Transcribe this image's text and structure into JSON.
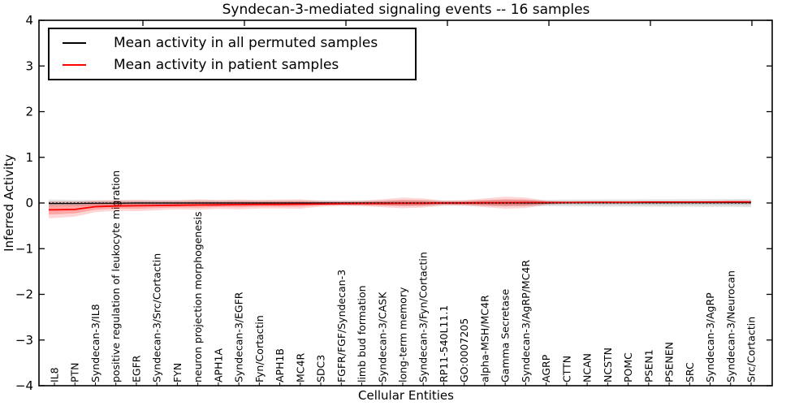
{
  "title": "Syndecan-3-mediated signaling events -- 16 samples",
  "axes": {
    "x_label": "Cellular Entities",
    "y_label": "Inferred Activity",
    "y_ticks": [
      4,
      3,
      2,
      1,
      0,
      -1,
      -2,
      -3,
      -4
    ],
    "y_min": -4,
    "y_max": 4
  },
  "legend": {
    "items": [
      {
        "label": "Mean activity in all permuted samples",
        "color": "#000000"
      },
      {
        "label": "Mean activity in patient samples",
        "color": "#ff0000"
      }
    ]
  },
  "colors": {
    "background": "#ffffff",
    "frame": "#000000",
    "permuted_line": "#000000",
    "patient_line": "#ff0000",
    "permuted_band": "#000000",
    "patient_band": "#ff0000",
    "zero_line": "#000000"
  },
  "chart_data": {
    "type": "line",
    "title": "Syndecan-3-mediated signaling events -- 16 samples",
    "xlabel": "Cellular Entities",
    "ylabel": "Inferred Activity",
    "ylim": [
      -4,
      4
    ],
    "grid": false,
    "legend_position": "upper left",
    "zero_line": {
      "value": 0,
      "style": "dotted",
      "color": "#000000"
    },
    "categories": [
      "IL8",
      "PTN",
      "Syndecan-3/IL8",
      "positive regulation of leukocyte migration",
      "EGFR",
      "Syndecan-3/Src/Cortactin",
      "FYN",
      "neuron projection morphogenesis",
      "APH1A",
      "Syndecan-3/EGFR",
      "Fyn/Cortactin",
      "APH1B",
      "MC4R",
      "SDC3",
      "FGFR/FGF/Syndecan-3",
      "limb bud formation",
      "Syndecan-3/CASK",
      "long-term memory",
      "Syndecan-3/Fyn/Cortactin",
      "RP11-540L11.1",
      "GO:0007205",
      "alpha-MSH/MC4R",
      "Gamma Secretase",
      "Syndecan-3/AgRP/MC4R",
      "AGRP",
      "CTTN",
      "NCAN",
      "NCSTN",
      "POMC",
      "PSEN1",
      "PSENEN",
      "SRC",
      "Syndecan-3/AgRP",
      "Syndecan-3/Neurocan",
      "Src/Cortactin"
    ],
    "series": [
      {
        "name": "Mean activity in all permuted samples",
        "color": "#000000",
        "values": [
          -0.01,
          -0.01,
          -0.005,
          -0.005,
          0,
          0,
          0,
          0,
          0,
          0,
          0,
          0,
          0,
          0,
          0,
          0,
          0,
          0,
          0,
          0,
          0,
          0,
          0,
          0,
          0,
          0.005,
          0.005,
          0.005,
          0.005,
          0.005,
          0.005,
          0.005,
          0.005,
          0.005,
          0.005
        ],
        "band_upper": [
          0.075,
          0.07,
          0.065,
          0.06,
          0.06,
          0.06,
          0.06,
          0.06,
          0.058,
          0.058,
          0.057,
          0.057,
          0.056,
          0.055,
          0.055,
          0.056,
          0.06,
          0.065,
          0.065,
          0.06,
          0.06,
          0.068,
          0.075,
          0.075,
          0.07,
          0.075,
          0.078,
          0.08,
          0.08,
          0.082,
          0.083,
          0.085,
          0.087,
          0.088,
          0.09
        ],
        "band_lower": [
          -0.075,
          -0.07,
          -0.065,
          -0.06,
          -0.06,
          -0.06,
          -0.06,
          -0.06,
          -0.058,
          -0.058,
          -0.057,
          -0.057,
          -0.056,
          -0.055,
          -0.055,
          -0.056,
          -0.06,
          -0.065,
          -0.065,
          -0.06,
          -0.06,
          -0.068,
          -0.075,
          -0.075,
          -0.07,
          -0.075,
          -0.078,
          -0.08,
          -0.08,
          -0.082,
          -0.083,
          -0.085,
          -0.087,
          -0.088,
          -0.09
        ]
      },
      {
        "name": "Mean activity in patient samples",
        "color": "#ff0000",
        "values": [
          -0.15,
          -0.14,
          -0.08,
          -0.065,
          -0.06,
          -0.055,
          -0.05,
          -0.045,
          -0.04,
          -0.035,
          -0.03,
          -0.03,
          -0.025,
          -0.02,
          -0.015,
          -0.01,
          -0.01,
          -0.005,
          -0.005,
          0,
          0,
          0.005,
          0.005,
          0.01,
          0.01,
          0.01,
          0.015,
          0.015,
          0.015,
          0.02,
          0.02,
          0.02,
          0.02,
          0.025,
          0.025
        ],
        "band_upper": [
          0.03,
          0.03,
          0.05,
          0.06,
          0.07,
          0.06,
          0.06,
          0.08,
          0.065,
          0.075,
          0.065,
          0.075,
          0.08,
          0.05,
          0.04,
          0.05,
          0.08,
          0.12,
          0.1,
          0.05,
          0.06,
          0.1,
          0.14,
          0.12,
          0.05,
          0.03,
          0.025,
          0.03,
          0.03,
          0.03,
          0.03,
          0.035,
          0.04,
          0.04,
          0.04
        ],
        "band_lower": [
          -0.33,
          -0.3,
          -0.2,
          -0.17,
          -0.18,
          -0.16,
          -0.14,
          -0.15,
          -0.13,
          -0.14,
          -0.12,
          -0.12,
          -0.125,
          -0.08,
          -0.06,
          -0.07,
          -0.09,
          -0.115,
          -0.1,
          -0.05,
          -0.055,
          -0.09,
          -0.125,
          -0.11,
          -0.04,
          -0.015,
          -0.01,
          -0.005,
          -0.005,
          -0.005,
          -0.005,
          0,
          0,
          0.005,
          0.005
        ]
      }
    ]
  }
}
